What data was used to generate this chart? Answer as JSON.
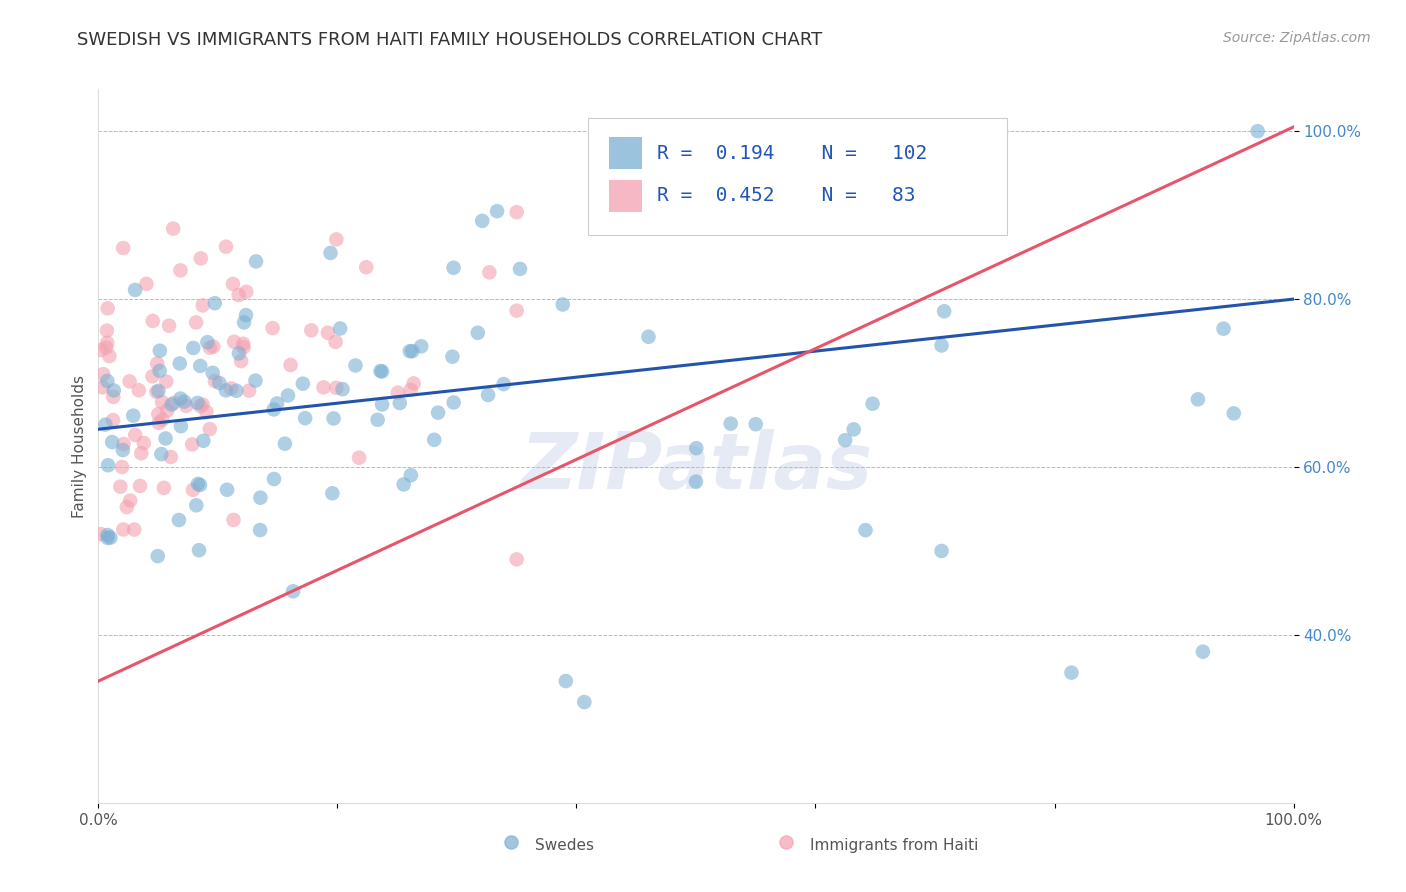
{
  "title": "SWEDISH VS IMMIGRANTS FROM HAITI FAMILY HOUSEHOLDS CORRELATION CHART",
  "source": "Source: ZipAtlas.com",
  "ylabel": "Family Households",
  "series1_name": "Swedes",
  "series2_name": "Immigrants from Haiti",
  "series1_color": "#7BAFD4",
  "series2_color": "#F4A0B0",
  "series1_R": 0.194,
  "series1_N": 102,
  "series2_R": 0.452,
  "series2_N": 83,
  "trend1_color": "#2255AA",
  "trend2_color": "#E8556A",
  "background_color": "#ffffff",
  "grid_color": "#bbbbbb",
  "watermark": "ZIPatlas",
  "watermark_color": "#aabbdd",
  "xlim": [
    0.0,
    1.0
  ],
  "ylim": [
    0.2,
    1.05
  ],
  "ytick_values": [
    0.4,
    0.6,
    0.8,
    1.0
  ],
  "ytick_labels": [
    "40.0%",
    "60.0%",
    "80.0%",
    "100.0%"
  ],
  "xtick_values": [
    0.0,
    0.2,
    0.4,
    0.6,
    0.8,
    1.0
  ],
  "xtick_labels": [
    "0.0%",
    "",
    "",
    "",
    "",
    "100.0%"
  ],
  "title_fontsize": 13,
  "axis_label_fontsize": 11,
  "tick_fontsize": 11,
  "legend_fontsize": 14,
  "source_fontsize": 10,
  "trend1_start_y": 0.645,
  "trend1_end_y": 0.8,
  "trend2_start_y": 0.345,
  "trend2_end_y": 1.005
}
